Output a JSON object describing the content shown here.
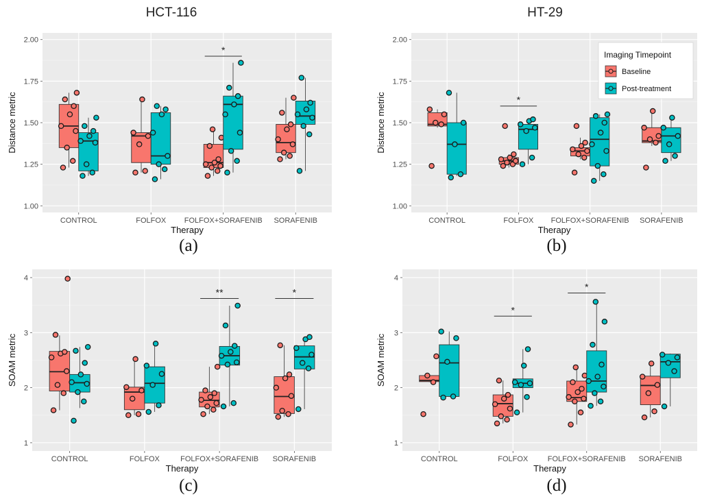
{
  "column_titles": [
    "HCT-116",
    "HT-29"
  ],
  "legend": {
    "title": "Imaging Timepoint",
    "items": [
      {
        "label": "Baseline",
        "color": "#f8766d"
      },
      {
        "label": "Post-treatment",
        "color": "#00bfc4"
      }
    ]
  },
  "chart_data": [
    {
      "type": "box",
      "panel_label": "(a)",
      "xlabel": "Therapy",
      "ylabel": "Distance metric",
      "ylim": [
        0.96,
        2.04
      ],
      "yticks": [
        "1.00",
        "1.25",
        "1.50",
        "1.75",
        "2.00"
      ],
      "categories": [
        "CONTROL",
        "FOLFOX",
        "FOLFOX+SORAFENIB",
        "SORAFENIB"
      ],
      "series": [
        {
          "name": "Baseline",
          "color": "#f8766d",
          "boxes": [
            {
              "whislo": 1.23,
              "q1": 1.35,
              "med": 1.48,
              "q3": 1.61,
              "whishi": 1.68,
              "points": [
                1.23,
                1.27,
                1.35,
                1.45,
                1.48,
                1.55,
                1.6,
                1.64,
                1.68
              ]
            },
            {
              "whislo": 1.2,
              "q1": 1.26,
              "med": 1.42,
              "q3": 1.44,
              "whishi": 1.64,
              "points": [
                1.2,
                1.21,
                1.37,
                1.42,
                1.44,
                1.64
              ]
            },
            {
              "whislo": 1.18,
              "q1": 1.23,
              "med": 1.26,
              "q3": 1.37,
              "whishi": 1.46,
              "points": [
                1.18,
                1.21,
                1.23,
                1.24,
                1.25,
                1.26,
                1.28,
                1.36,
                1.41,
                1.46
              ]
            },
            {
              "whislo": 1.28,
              "q1": 1.32,
              "med": 1.38,
              "q3": 1.49,
              "whishi": 1.65,
              "points": [
                1.28,
                1.3,
                1.32,
                1.37,
                1.4,
                1.46,
                1.49,
                1.56,
                1.65
              ]
            }
          ]
        },
        {
          "name": "Post-treatment",
          "color": "#00bfc4",
          "boxes": [
            {
              "whislo": 1.18,
              "q1": 1.21,
              "med": 1.39,
              "q3": 1.44,
              "whishi": 1.53,
              "points": [
                1.18,
                1.2,
                1.25,
                1.38,
                1.39,
                1.42,
                1.45,
                1.48,
                1.53
              ]
            },
            {
              "whislo": 1.16,
              "q1": 1.25,
              "med": 1.3,
              "q3": 1.56,
              "whishi": 1.6,
              "points": [
                1.16,
                1.22,
                1.25,
                1.3,
                1.44,
                1.55,
                1.58,
                1.6
              ]
            },
            {
              "whislo": 1.2,
              "q1": 1.34,
              "med": 1.61,
              "q3": 1.66,
              "whishi": 1.86,
              "points": [
                1.2,
                1.27,
                1.33,
                1.44,
                1.55,
                1.61,
                1.66,
                1.71,
                1.86
              ]
            },
            {
              "whislo": 1.21,
              "q1": 1.49,
              "med": 1.54,
              "q3": 1.63,
              "whishi": 1.77,
              "points": [
                1.21,
                1.43,
                1.48,
                1.53,
                1.55,
                1.58,
                1.62,
                1.77
              ]
            }
          ]
        }
      ],
      "significance": [
        {
          "category_index": 2,
          "label": "*",
          "y": 1.9
        }
      ],
      "show_legend": false
    },
    {
      "type": "box",
      "panel_label": "(b)",
      "xlabel": "Therapy",
      "ylabel": "Distance metric",
      "ylim": [
        0.96,
        2.04
      ],
      "yticks": [
        "1.00",
        "1.25",
        "1.50",
        "1.75",
        "2.00"
      ],
      "categories": [
        "CONTROL",
        "FOLFOX",
        "FOLFOX+SORAFENIB",
        "SORAFENIB"
      ],
      "series": [
        {
          "name": "Baseline",
          "color": "#f8766d",
          "boxes": [
            {
              "whislo": 1.47,
              "q1": 1.48,
              "med": 1.49,
              "q3": 1.56,
              "whishi": 1.58,
              "points": [
                1.24,
                1.49,
                1.5,
                1.55,
                1.58
              ]
            },
            {
              "whislo": 1.23,
              "q1": 1.25,
              "med": 1.27,
              "q3": 1.29,
              "whishi": 1.31,
              "points": [
                1.24,
                1.25,
                1.26,
                1.27,
                1.28,
                1.29,
                1.31,
                1.48
              ]
            },
            {
              "whislo": 1.28,
              "q1": 1.3,
              "med": 1.33,
              "q3": 1.35,
              "whishi": 1.41,
              "points": [
                1.2,
                1.29,
                1.31,
                1.33,
                1.34,
                1.36,
                1.38,
                1.48
              ]
            },
            {
              "whislo": 1.36,
              "q1": 1.38,
              "med": 1.39,
              "q3": 1.47,
              "whishi": 1.57,
              "points": [
                1.23,
                1.38,
                1.4,
                1.42,
                1.47,
                1.57
              ]
            }
          ]
        },
        {
          "name": "Post-treatment",
          "color": "#00bfc4",
          "boxes": [
            {
              "whislo": 1.18,
              "q1": 1.19,
              "med": 1.37,
              "q3": 1.5,
              "whishi": 1.68,
              "points": [
                1.17,
                1.19,
                1.37,
                1.5,
                1.68
              ]
            },
            {
              "whislo": 1.25,
              "q1": 1.34,
              "med": 1.46,
              "q3": 1.49,
              "whishi": 1.52,
              "points": [
                1.25,
                1.29,
                1.45,
                1.47,
                1.49,
                1.51,
                1.52
              ]
            },
            {
              "whislo": 1.15,
              "q1": 1.24,
              "med": 1.4,
              "q3": 1.53,
              "whishi": 1.55,
              "points": [
                1.15,
                1.19,
                1.24,
                1.33,
                1.37,
                1.44,
                1.5,
                1.54,
                1.55
              ]
            },
            {
              "whislo": 1.27,
              "q1": 1.32,
              "med": 1.42,
              "q3": 1.47,
              "whishi": 1.53,
              "points": [
                1.27,
                1.3,
                1.37,
                1.42,
                1.47,
                1.53
              ]
            }
          ]
        }
      ],
      "significance": [
        {
          "category_index": 1,
          "label": "*",
          "y": 1.6
        }
      ],
      "show_legend": true
    },
    {
      "type": "box",
      "panel_label": "(c)",
      "xlabel": "Therapy",
      "ylabel": "SOAM metric",
      "ylim": [
        0.85,
        4.15
      ],
      "yticks": [
        "1",
        "2",
        "3",
        "4"
      ],
      "categories": [
        "CONTROL",
        "FOLFOX",
        "FOLFOX+SORAFENIB",
        "SORAFENIB"
      ],
      "series": [
        {
          "name": "Baseline",
          "color": "#f8766d",
          "boxes": [
            {
              "whislo": 1.59,
              "q1": 1.94,
              "med": 2.29,
              "q3": 2.66,
              "whishi": 2.95,
              "points": [
                1.59,
                1.9,
                2.05,
                2.3,
                2.55,
                2.62,
                2.65,
                2.96,
                3.98
              ]
            },
            {
              "whislo": 1.5,
              "q1": 1.6,
              "med": 1.92,
              "q3": 2.01,
              "whishi": 2.52,
              "points": [
                1.5,
                1.52,
                1.8,
                1.95,
                2.01,
                2.52
              ]
            },
            {
              "whislo": 1.52,
              "q1": 1.65,
              "med": 1.77,
              "q3": 1.92,
              "whishi": 2.38,
              "points": [
                1.52,
                1.6,
                1.66,
                1.72,
                1.78,
                1.83,
                1.9,
                1.95,
                2.38
              ]
            },
            {
              "whislo": 1.47,
              "q1": 1.53,
              "med": 1.84,
              "q3": 2.2,
              "whishi": 2.77,
              "points": [
                1.47,
                1.52,
                1.58,
                1.85,
                2.0,
                2.17,
                2.24,
                2.77
              ]
            }
          ]
        },
        {
          "name": "Post-treatment",
          "color": "#00bfc4",
          "boxes": [
            {
              "whislo": 1.63,
              "q1": 1.92,
              "med": 2.09,
              "q3": 2.24,
              "whishi": 2.74,
              "points": [
                1.4,
                1.75,
                1.92,
                2.07,
                2.1,
                2.24,
                2.45,
                2.67,
                2.74
              ]
            },
            {
              "whislo": 1.56,
              "q1": 1.72,
              "med": 2.08,
              "q3": 2.38,
              "whishi": 2.8,
              "points": [
                1.56,
                1.68,
                2.05,
                2.25,
                2.4,
                2.8
              ]
            },
            {
              "whislo": 1.66,
              "q1": 2.41,
              "med": 2.58,
              "q3": 2.75,
              "whishi": 3.49,
              "points": [
                1.66,
                1.72,
                2.42,
                2.46,
                2.58,
                2.65,
                2.76,
                3.13,
                3.49
              ]
            },
            {
              "whislo": 1.61,
              "q1": 2.34,
              "med": 2.56,
              "q3": 2.76,
              "whishi": 2.92,
              "points": [
                1.61,
                2.35,
                2.45,
                2.6,
                2.72,
                2.88,
                2.92
              ]
            }
          ]
        }
      ],
      "significance": [
        {
          "category_index": 2,
          "label": "**",
          "y": 3.62
        },
        {
          "category_index": 3,
          "label": "*",
          "y": 3.62
        }
      ],
      "show_legend": false
    },
    {
      "type": "box",
      "panel_label": "(d)",
      "xlabel": "Therapy",
      "ylabel": "SOAM metric",
      "ylim": [
        0.85,
        4.15
      ],
      "yticks": [
        "1",
        "2",
        "3",
        "4"
      ],
      "categories": [
        "CONTROL",
        "FOLFOX",
        "FOLFOX+SORAFENIB",
        "SORAFENIB"
      ],
      "series": [
        {
          "name": "Baseline",
          "color": "#f8766d",
          "boxes": [
            {
              "whislo": 2.1,
              "q1": 2.11,
              "med": 2.13,
              "q3": 2.22,
              "whishi": 2.24,
              "points": [
                1.52,
                2.1,
                2.22,
                2.57
              ]
            },
            {
              "whislo": 1.35,
              "q1": 1.48,
              "med": 1.71,
              "q3": 1.87,
              "whishi": 2.13,
              "points": [
                1.35,
                1.42,
                1.48,
                1.62,
                1.7,
                1.8,
                1.87,
                2.13
              ]
            },
            {
              "whislo": 1.33,
              "q1": 1.75,
              "med": 1.82,
              "q3": 2.12,
              "whishi": 2.37,
              "points": [
                1.33,
                1.55,
                1.75,
                1.8,
                1.83,
                1.92,
                1.98,
                2.1,
                2.22,
                2.37
              ]
            },
            {
              "whislo": 1.46,
              "q1": 1.69,
              "med": 2.04,
              "q3": 2.21,
              "whishi": 2.44,
              "points": [
                1.46,
                1.57,
                1.9,
                2.05,
                2.2,
                2.44
              ]
            }
          ]
        },
        {
          "name": "Post-treatment",
          "color": "#00bfc4",
          "boxes": [
            {
              "whislo": 1.83,
              "q1": 1.84,
              "med": 2.45,
              "q3": 2.78,
              "whishi": 3.02,
              "points": [
                1.82,
                1.84,
                2.47,
                2.9,
                3.02
              ]
            },
            {
              "whislo": 1.55,
              "q1": 2.0,
              "med": 2.08,
              "q3": 2.16,
              "whishi": 2.7,
              "points": [
                1.55,
                1.83,
                2.05,
                2.08,
                2.1,
                2.4,
                2.7
              ]
            },
            {
              "whislo": 1.67,
              "q1": 1.92,
              "med": 2.12,
              "q3": 2.67,
              "whishi": 3.55,
              "points": [
                1.67,
                1.75,
                1.9,
                2.02,
                2.12,
                2.2,
                2.42,
                2.78,
                3.2,
                3.56
              ]
            },
            {
              "whislo": 1.66,
              "q1": 2.18,
              "med": 2.47,
              "q3": 2.61,
              "whishi": 2.62,
              "points": [
                1.66,
                2.3,
                2.45,
                2.55,
                2.6
              ]
            }
          ]
        }
      ],
      "significance": [
        {
          "category_index": 1,
          "label": "*",
          "y": 3.3
        },
        {
          "category_index": 2,
          "label": "*",
          "y": 3.72
        }
      ],
      "show_legend": false
    }
  ]
}
